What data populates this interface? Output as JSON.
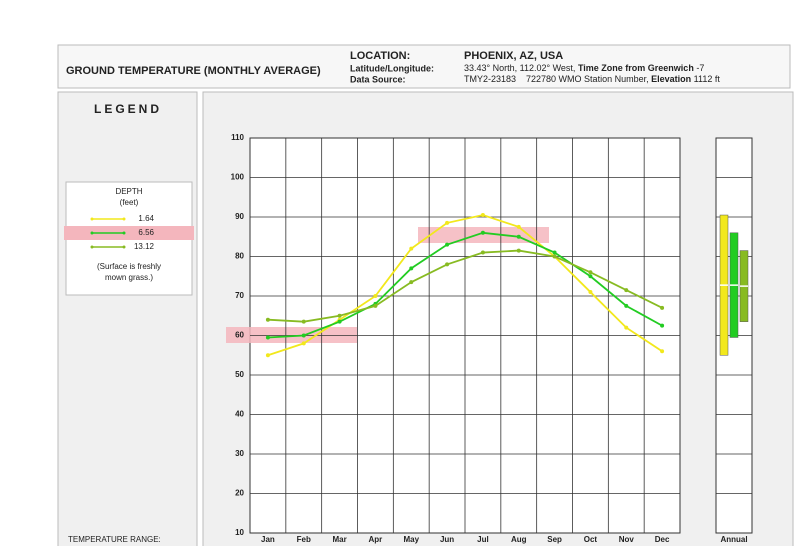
{
  "header": {
    "title": "GROUND TEMPERATURE (MONTHLY AVERAGE)",
    "location_label": "LOCATION:",
    "location": "PHOENIX, AZ, USA",
    "latlon_label": "Latitude/Longitude:",
    "latlon": "33.43° North, 112.02° West,",
    "tz_label": "Time Zone from Greenwich",
    "tz_value": "-7",
    "source_label": "Data Source:",
    "source": "TMY2-23183    722780 WMO Station Number,",
    "elevation_label": "Elevation",
    "elevation_value": "1112 ft"
  },
  "legend": {
    "title": "LEGEND",
    "depth": "DEPTH",
    "unit": "(feet)",
    "note1": "(Surface is freshly",
    "note2": "mown grass.)"
  },
  "range_label": "TEMPERATURE RANGE:",
  "chart_data": {
    "type": "line",
    "categories": [
      "Jan",
      "Feb",
      "Mar",
      "Apr",
      "May",
      "Jun",
      "Jul",
      "Aug",
      "Sep",
      "Oct",
      "Nov",
      "Dec"
    ],
    "annual_label": "Annual",
    "series": [
      {
        "name": "1.64",
        "color": "#f2e81c",
        "values": [
          55,
          58,
          64,
          70,
          82,
          88.5,
          90.5,
          87.5,
          80,
          71,
          62,
          56
        ]
      },
      {
        "name": "6.56",
        "color": "#22cc22",
        "values": [
          59.5,
          60,
          63.5,
          68,
          77,
          83,
          86,
          85,
          81,
          75,
          67.5,
          62.5
        ]
      },
      {
        "name": "13.12",
        "color": "#88bb22",
        "values": [
          64,
          63.5,
          65,
          67.5,
          73.5,
          78,
          81,
          81.5,
          80,
          76,
          71.5,
          67
        ]
      }
    ],
    "ylim": [
      10,
      110
    ],
    "yticks": [
      10,
      20,
      30,
      40,
      50,
      60,
      70,
      80,
      90,
      100,
      110
    ],
    "grid": true
  }
}
